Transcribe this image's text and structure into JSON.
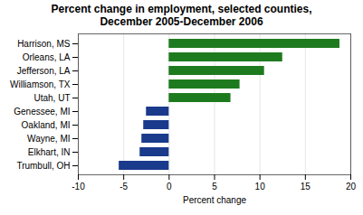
{
  "chart_data": {
    "type": "bar",
    "orientation": "horizontal",
    "title": "Percent change in employment, selected counties,\nDecember 2005-December 2006",
    "xlabel": "Percent change",
    "categories": [
      "Trumbull, OH",
      "Elkhart, IN",
      "Wayne, MI",
      "Oakland, MI",
      "Genessee, MI",
      "Utah, UT",
      "Williamson, TX",
      "Jefferson, LA",
      "Orleans, LA",
      "Harrison, MS"
    ],
    "values": [
      -5.5,
      -3.2,
      -3.0,
      -2.8,
      -2.5,
      6.8,
      7.8,
      10.5,
      12.5,
      18.8
    ],
    "colors": [
      "#1a3a8c",
      "#1a3a8c",
      "#1a3a8c",
      "#1a3a8c",
      "#1a3a8c",
      "#1e7a1e",
      "#1e7a1e",
      "#1e7a1e",
      "#1e7a1e",
      "#1e7a1e"
    ],
    "xlim": [
      -10,
      20
    ],
    "xticks": [
      -10,
      -5,
      0,
      5,
      10,
      15,
      20
    ],
    "grid": true
  }
}
